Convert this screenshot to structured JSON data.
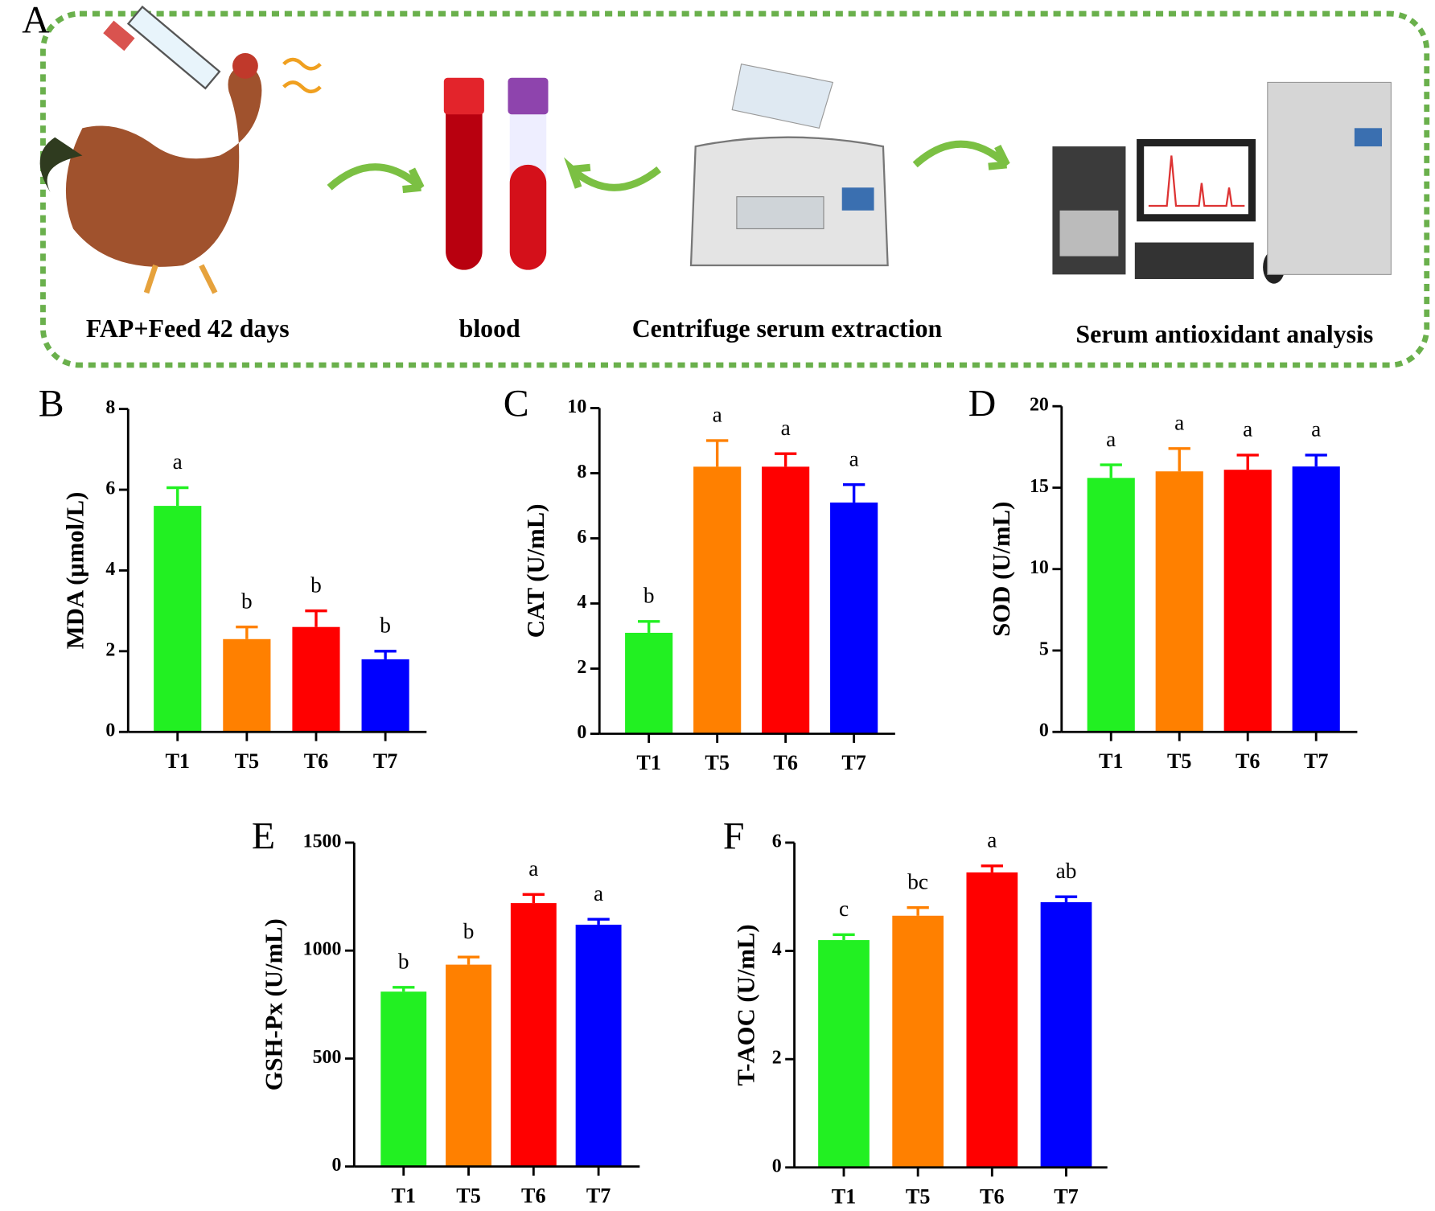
{
  "diagram": {
    "label": "A",
    "steps": [
      "FAP+Feed 42 days",
      "blood",
      "Centrifuge serum extraction",
      "Serum antioxidant analysis"
    ]
  },
  "chart_data": [
    {
      "type": "bar",
      "label": "B",
      "ylabel": "MDA (μmol/L)",
      "categories": [
        "T1",
        "T5",
        "T6",
        "T7"
      ],
      "values": [
        5.6,
        2.3,
        2.6,
        1.8
      ],
      "errors": [
        0.45,
        0.3,
        0.4,
        0.2
      ],
      "annotations": [
        "a",
        "b",
        "b",
        "b"
      ],
      "colors": [
        "#22f022",
        "#ff8000",
        "#ff0000",
        "#0000ff"
      ],
      "ylim": [
        0,
        8
      ],
      "yticks": [
        0,
        2,
        4,
        6,
        8
      ]
    },
    {
      "type": "bar",
      "label": "C",
      "ylabel": "CAT (U/mL)",
      "categories": [
        "T1",
        "T5",
        "T6",
        "T7"
      ],
      "values": [
        3.1,
        8.2,
        8.2,
        7.1
      ],
      "errors": [
        0.35,
        0.8,
        0.4,
        0.55
      ],
      "annotations": [
        "b",
        "a",
        "a",
        "a"
      ],
      "colors": [
        "#22f022",
        "#ff8000",
        "#ff0000",
        "#0000ff"
      ],
      "ylim": [
        0,
        10
      ],
      "yticks": [
        0,
        2,
        4,
        6,
        8,
        10
      ]
    },
    {
      "type": "bar",
      "label": "D",
      "ylabel": "SOD (U/mL)",
      "categories": [
        "T1",
        "T5",
        "T6",
        "T7"
      ],
      "values": [
        15.6,
        16.0,
        16.1,
        16.3
      ],
      "errors": [
        0.8,
        1.4,
        0.9,
        0.7
      ],
      "annotations": [
        "a",
        "a",
        "a",
        "a"
      ],
      "colors": [
        "#22f022",
        "#ff8000",
        "#ff0000",
        "#0000ff"
      ],
      "ylim": [
        0,
        20
      ],
      "yticks": [
        0,
        5,
        10,
        15,
        20
      ]
    },
    {
      "type": "bar",
      "label": "E",
      "ylabel": "GSH-Px (U/mL)",
      "categories": [
        "T1",
        "T5",
        "T6",
        "T7"
      ],
      "values": [
        810,
        935,
        1220,
        1120
      ],
      "errors": [
        20,
        35,
        40,
        25
      ],
      "annotations": [
        "b",
        "b",
        "a",
        "a"
      ],
      "colors": [
        "#22f022",
        "#ff8000",
        "#ff0000",
        "#0000ff"
      ],
      "ylim": [
        0,
        1500
      ],
      "yticks": [
        0,
        500,
        1000,
        1500
      ]
    },
    {
      "type": "bar",
      "label": "F",
      "ylabel": "T-AOC (U/mL)",
      "categories": [
        "T1",
        "T5",
        "T6",
        "T7"
      ],
      "values": [
        4.2,
        4.65,
        5.45,
        4.9
      ],
      "errors": [
        0.1,
        0.15,
        0.12,
        0.1
      ],
      "annotations": [
        "c",
        "bc",
        "a",
        "ab"
      ],
      "colors": [
        "#22f022",
        "#ff8000",
        "#ff0000",
        "#0000ff"
      ],
      "ylim": [
        0,
        6
      ],
      "yticks": [
        0,
        2,
        4,
        6
      ]
    }
  ]
}
